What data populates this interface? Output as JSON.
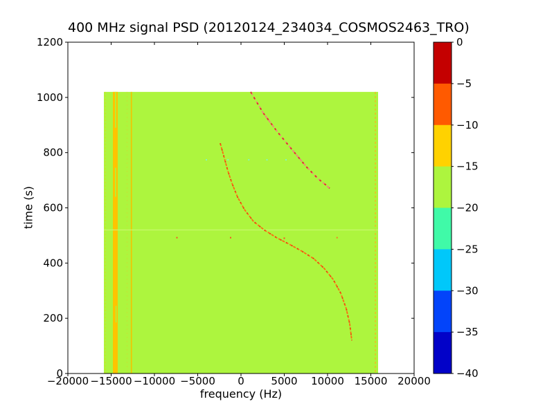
{
  "title": "400 MHz signal PSD (20120124_234034_COSMOS2463_TRO)",
  "chart_data": {
    "type": "heatmap",
    "title": "400 MHz signal PSD (20120124_234034_COSMOS2463_TRO)",
    "xlabel": "frequency (Hz)",
    "ylabel": "time (s)",
    "xlim": [
      -20000,
      20000
    ],
    "ylim": [
      0,
      1200
    ],
    "xticks": [
      -20000,
      -15000,
      -10000,
      -5000,
      0,
      5000,
      10000,
      15000,
      20000
    ],
    "xtick_labels": [
      "−20000",
      "−15000",
      "−10000",
      "−5000",
      "0",
      "5000",
      "10000",
      "15000",
      "20000"
    ],
    "yticks": [
      0,
      200,
      400,
      600,
      800,
      1000,
      1200
    ],
    "ytick_labels": [
      "0",
      "200",
      "400",
      "600",
      "800",
      "1000",
      "1200"
    ],
    "grid": false,
    "extent": {
      "freq": [
        -15840,
        15840
      ],
      "time": [
        0,
        1020
      ]
    },
    "background_level_db": -17,
    "background_color": "#adf53e",
    "colorbar": {
      "position": "right",
      "ticks": [
        0,
        -5,
        -10,
        -15,
        -20,
        -25,
        -30,
        -35,
        -40
      ],
      "tick_labels": [
        "0",
        "−5",
        "−10",
        "−15",
        "−20",
        "−25",
        "−30",
        "−35",
        "−40"
      ],
      "segments": [
        {
          "range": [
            0,
            -5
          ],
          "color": "#c40000"
        },
        {
          "range": [
            -5,
            -10
          ],
          "color": "#ff5a00"
        },
        {
          "range": [
            -10,
            -15
          ],
          "color": "#ffd200"
        },
        {
          "range": [
            -15,
            -20
          ],
          "color": "#adf53e"
        },
        {
          "range": [
            -20,
            -25
          ],
          "color": "#40faa8"
        },
        {
          "range": [
            -25,
            -30
          ],
          "color": "#00c8fa"
        },
        {
          "range": [
            -30,
            -35
          ],
          "color": "#0344fa"
        },
        {
          "range": [
            -35,
            -40
          ],
          "color": "#0202c8"
        }
      ]
    },
    "rfi_vertical_lines": [
      {
        "freq": -14520,
        "width_hz": 560,
        "color": "#ffc400",
        "opacity": 1,
        "dash": null
      },
      {
        "freq": -12660,
        "width_hz": 140,
        "color": "#f2c400",
        "opacity": 0.95,
        "dash": null
      },
      {
        "freq": -15680,
        "width_hz": 100,
        "color": "#ffc400",
        "opacity": 0.45,
        "dash": "2,3"
      },
      {
        "freq": -13160,
        "width_hz": 90,
        "color": "#e0c82e",
        "opacity": 0.4,
        "dash": "2,4"
      },
      {
        "freq": 15520,
        "width_hz": 120,
        "color": "#ffaa20",
        "opacity": 0.8,
        "dash": "3,3"
      }
    ],
    "rfi_line_gaps": [
      {
        "freq": -14490,
        "width_hz": 130,
        "time": [
          890,
          1020
        ]
      },
      {
        "freq": -14490,
        "width_hz": 130,
        "time": [
          640,
          745
        ]
      },
      {
        "freq": -14430,
        "width_hz": 120,
        "time": [
          185,
          245
        ]
      }
    ],
    "artifact_rows": [
      {
        "time": 520,
        "color": "#c9f872",
        "opacity": 0.85
      }
    ],
    "artifact_dots": [
      {
        "freq": -7400,
        "time": 492,
        "color": "#ff4020",
        "size": 2
      },
      {
        "freq": -1200,
        "time": 492,
        "color": "#ff4020",
        "size": 2
      },
      {
        "freq": 5000,
        "time": 490,
        "color": "#ff4020",
        "size": 2
      },
      {
        "freq": 11100,
        "time": 492,
        "color": "#ff7020",
        "size": 2
      },
      {
        "freq": -4000,
        "time": 774,
        "color": "#7df8cf",
        "size": 2
      },
      {
        "freq": -1500,
        "time": 774,
        "color": "#7df8cf",
        "size": 2
      },
      {
        "freq": 900,
        "time": 774,
        "color": "#7df8cf",
        "size": 2
      },
      {
        "freq": 3000,
        "time": 774,
        "color": "#7df8cf",
        "size": 2
      },
      {
        "freq": 5200,
        "time": 774,
        "color": "#7df8cf",
        "size": 2
      }
    ],
    "doppler_traces": [
      {
        "name": "pass-1-doppler",
        "color": "#f08878",
        "overlay_color": "#e03030",
        "width": 2,
        "dash": "5,3",
        "overlay_dash": "3,6",
        "points_freq_time": [
          [
            1120,
            1020
          ],
          [
            2560,
            944
          ],
          [
            4160,
            877
          ],
          [
            6000,
            807
          ],
          [
            7600,
            747
          ],
          [
            8960,
            704
          ],
          [
            9760,
            684
          ],
          [
            10240,
            671
          ]
        ]
      },
      {
        "name": "pass-2-doppler",
        "color": "#ff6a10",
        "overlay_color": "#e84010",
        "width": 1.8,
        "dash": "4,2",
        "overlay_dash": "2,7",
        "points_freq_time": [
          [
            -2400,
            834
          ],
          [
            -2000,
            789
          ],
          [
            -1520,
            734
          ],
          [
            -1040,
            689
          ],
          [
            -400,
            639
          ],
          [
            400,
            594
          ],
          [
            1440,
            551
          ],
          [
            2720,
            519
          ],
          [
            4160,
            491
          ],
          [
            5600,
            468
          ],
          [
            7040,
            443
          ],
          [
            8400,
            416
          ],
          [
            9600,
            381
          ],
          [
            10640,
            341
          ],
          [
            11520,
            291
          ],
          [
            12160,
            235
          ],
          [
            12560,
            180
          ],
          [
            12800,
            120
          ]
        ]
      }
    ]
  }
}
